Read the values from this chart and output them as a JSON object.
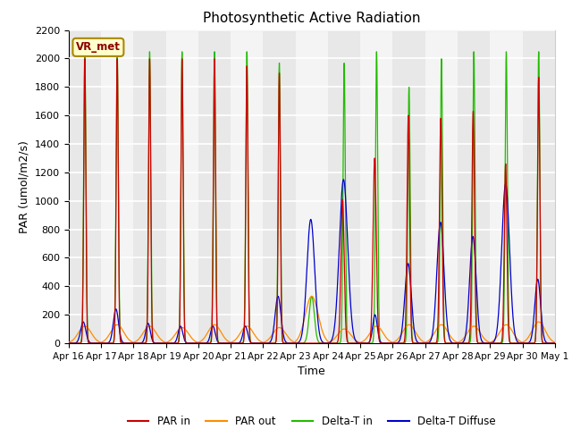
{
  "title": "Photosynthetic Active Radiation",
  "ylabel": "PAR (umol/m2/s)",
  "xlabel": "Time",
  "ylim": [
    0,
    2200
  ],
  "legend_labels": [
    "PAR in",
    "PAR out",
    "Delta-T in",
    "Delta-T Diffuse"
  ],
  "legend_colors": [
    "#cc0000",
    "#ff8c00",
    "#22bb00",
    "#0000cc"
  ],
  "annotation_text": "VR_met",
  "annotation_bg": "#ffffcc",
  "annotation_border": "#aa8800",
  "tick_labels": [
    "Apr 16",
    "Apr 17",
    "Apr 18",
    "Apr 19",
    "Apr 20",
    "Apr 21",
    "Apr 22",
    "Apr 23",
    "Apr 24",
    "Apr 25",
    "Apr 26",
    "Apr 27",
    "Apr 28",
    "Apr 29",
    "Apr 30",
    "May 1"
  ],
  "yticks": [
    0,
    200,
    400,
    600,
    800,
    1000,
    1200,
    1400,
    1600,
    1800,
    2000,
    2200
  ],
  "band_colors": [
    "#e8e8e8",
    "#f4f4f4"
  ]
}
